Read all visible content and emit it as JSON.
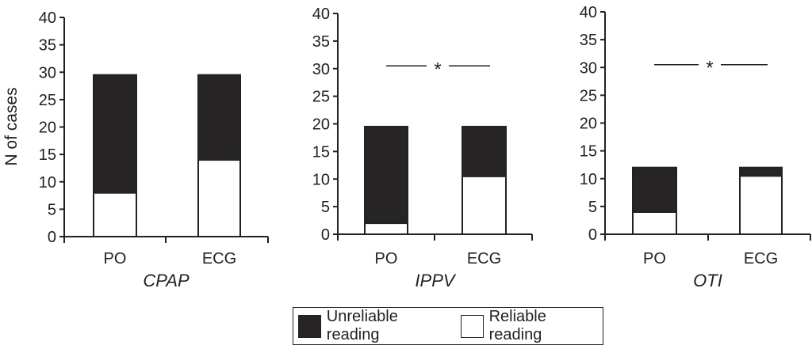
{
  "chart_data": [
    {
      "type": "bar",
      "stacked": true,
      "title": "CPAP",
      "categories": [
        "PO",
        "ECG"
      ],
      "ylabel": "N of cases",
      "ylim": [
        0,
        40
      ],
      "yticks": [
        "0",
        "5",
        "10",
        "15",
        "20",
        "25",
        "30",
        "35",
        "40"
      ],
      "series": [
        {
          "name": "Reliable reading",
          "values": [
            8,
            14
          ]
        },
        {
          "name": "Unreliable reading",
          "values": [
            21.5,
            15.5
          ]
        }
      ],
      "significance": null
    },
    {
      "type": "bar",
      "stacked": true,
      "title": "IPPV",
      "categories": [
        "PO",
        "ECG"
      ],
      "ylim": [
        0,
        40
      ],
      "yticks": [
        "0",
        "5",
        "10",
        "15",
        "20",
        "25",
        "30",
        "35",
        "40"
      ],
      "series": [
        {
          "name": "Reliable reading",
          "values": [
            2,
            10.5
          ]
        },
        {
          "name": "Unreliable reading",
          "values": [
            17.5,
            9
          ]
        }
      ],
      "significance": {
        "label": "*",
        "y": 30.5
      }
    },
    {
      "type": "bar",
      "stacked": true,
      "title": "OTI",
      "categories": [
        "PO",
        "ECG"
      ],
      "ylim": [
        0,
        40
      ],
      "yticks": [
        "0",
        "5",
        "10",
        "15",
        "20",
        "25",
        "30",
        "35",
        "40"
      ],
      "series": [
        {
          "name": "Reliable reading",
          "values": [
            4,
            10.5
          ]
        },
        {
          "name": "Unreliable reading",
          "values": [
            8,
            1.5
          ]
        }
      ],
      "significance": {
        "label": "*",
        "y": 30.5
      }
    }
  ],
  "legend": {
    "position": "bottom-center",
    "items": [
      {
        "label": "Unreliable reading",
        "color": "#262424"
      },
      {
        "label": "Reliable reading",
        "color": "#ffffff"
      }
    ]
  },
  "colors": {
    "unreliable": "#262424",
    "reliable": "#ffffff",
    "axis": "#222222"
  }
}
